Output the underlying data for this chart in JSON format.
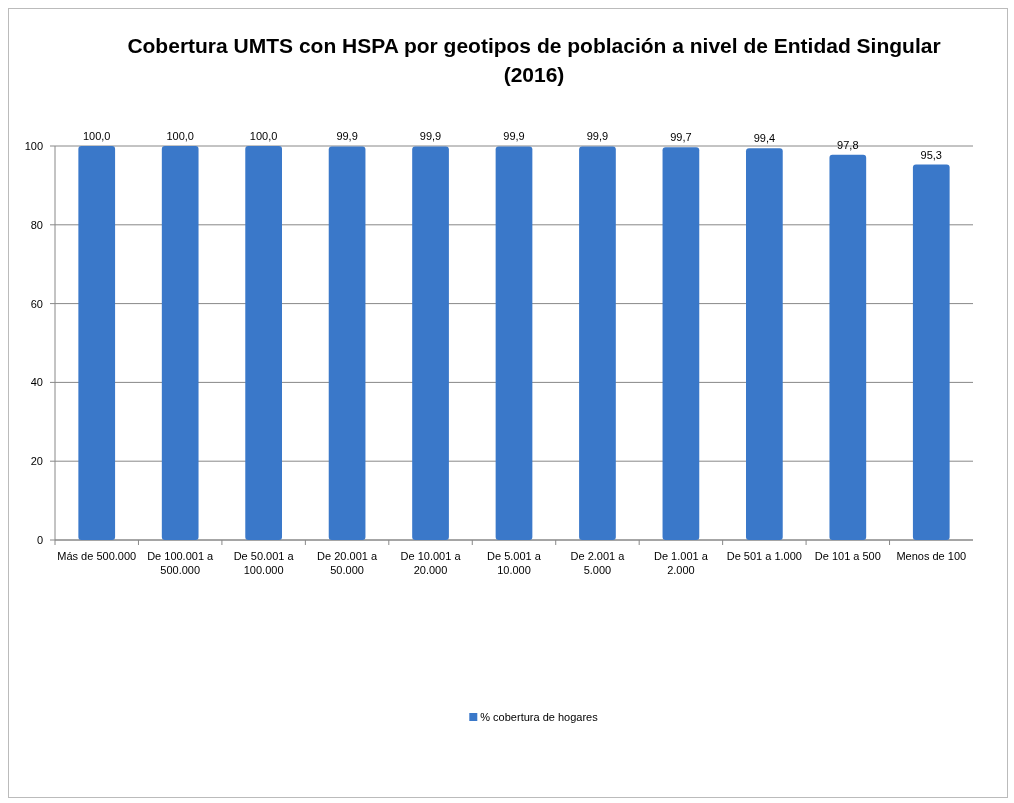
{
  "chart_data": {
    "type": "bar",
    "title": "Cobertura UMTS con HSPA por geotipos de población a nivel de Entidad Singular (2016)",
    "categories": [
      "Más de 500.000",
      "De 100.001 a 500.000",
      "De 50.001 a 100.000",
      "De 20.001 a 50.000",
      "De 10.001 a 20.000",
      "De 5.001 a 10.000",
      "De 2.001 a 5.000",
      "De 1.001 a 2.000",
      "De 501 a 1.000",
      "De 101 a 500",
      "Menos de 100"
    ],
    "series": [
      {
        "name": "% cobertura de hogares",
        "color": "#3a78c9",
        "values": [
          100.0,
          100.0,
          100.0,
          99.9,
          99.9,
          99.9,
          99.9,
          99.7,
          99.4,
          97.8,
          95.3
        ],
        "value_labels": [
          "100,0",
          "100,0",
          "100,0",
          "99,9",
          "99,9",
          "99,9",
          "99,9",
          "99,7",
          "99,4",
          "97,8",
          "95,3"
        ]
      }
    ],
    "ylim": [
      0,
      100
    ],
    "yticks": [
      0,
      20,
      40,
      60,
      80,
      100
    ],
    "grid": "y",
    "legend": "bottom"
  }
}
